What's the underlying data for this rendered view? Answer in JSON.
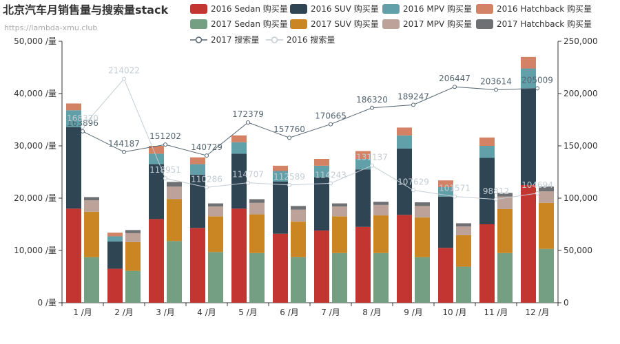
{
  "chart_data": {
    "type": "bar",
    "title": "北京汽车月销售量与搜索量stack",
    "subtitle": "https://lambda-xmu.club",
    "categories": [
      "1 /月",
      "2 /月",
      "3 /月",
      "4 /月",
      "5 /月",
      "6 /月",
      "7 /月",
      "8 /月",
      "9 /月",
      "10 /月",
      "11 /月",
      "12 /月"
    ],
    "y_left": {
      "min": 0,
      "max": 50000,
      "ticks": [
        "0 /量",
        "10,000 /量",
        "20,000 /量",
        "30,000 /量",
        "40,000 /量",
        "50,000 /量"
      ]
    },
    "y_right": {
      "min": 0,
      "max": 250000,
      "ticks": [
        "0",
        "50,000",
        "100,000",
        "150,000",
        "200,000",
        "250,000"
      ]
    },
    "grid": false,
    "legend_position": "top-right",
    "stacks": [
      {
        "stack": "2016",
        "series": [
          {
            "name": "2016 Sedan 购买量",
            "color": "#c23531",
            "values": [
              18000,
              6500,
              16000,
              14300,
              18000,
              13200,
              13800,
              14500,
              16800,
              10500,
              15000,
              22500
            ]
          },
          {
            "name": "2016 SUV 购买量",
            "color": "#2f4554",
            "values": [
              15600,
              5200,
              10500,
              10200,
              10500,
              10000,
              10200,
              11000,
              12700,
              9800,
              12700,
              18500
            ]
          },
          {
            "name": "2016 MPV 购买量",
            "color": "#61a0a8",
            "values": [
              3200,
              1000,
              2000,
              2000,
              2200,
              2000,
              2200,
              2000,
              2500,
              1800,
              2300,
              3800
            ]
          },
          {
            "name": "2016 Hatchback 购买量",
            "color": "#d48265",
            "values": [
              1300,
              700,
              1500,
              1300,
              1300,
              1000,
              1300,
              1500,
              1500,
              1300,
              1600,
              2200
            ]
          }
        ]
      },
      {
        "stack": "2017",
        "series": [
          {
            "name": "2017 Sedan 购买量",
            "color": "#749f83",
            "values": [
              8700,
              6100,
              11800,
              9700,
              9500,
              8700,
              9500,
              9500,
              8700,
              6900,
              9500,
              10300
            ]
          },
          {
            "name": "2017 SUV 购买量",
            "color": "#ca8622",
            "values": [
              8700,
              5500,
              8000,
              6800,
              7400,
              6800,
              7000,
              7200,
              7600,
              6000,
              8400,
              8800
            ]
          },
          {
            "name": "2017 MPV 购买量",
            "color": "#bda29a",
            "values": [
              2200,
              1700,
              2400,
              1900,
              2200,
              2300,
              1900,
              2000,
              2200,
              1700,
              2400,
              2200
            ]
          },
          {
            "name": "2017 Hatchback 购买量",
            "color": "#6e7074",
            "values": [
              600,
              600,
              900,
              600,
              700,
              700,
              600,
              600,
              700,
              600,
              700,
              900
            ]
          }
        ]
      }
    ],
    "lines": [
      {
        "name": "2017 搜索量",
        "color": "#546570",
        "values": [
          163896,
          144187,
          151202,
          140729,
          172379,
          157760,
          170665,
          186320,
          189247,
          206447,
          203614,
          205009
        ]
      },
      {
        "name": "2016 搜索量",
        "color": "#c4ccd3",
        "values": [
          168370,
          214022,
          118951,
          110286,
          114707,
          112589,
          114243,
          131137,
          107629,
          101571,
          98812,
          104694
        ]
      }
    ]
  }
}
